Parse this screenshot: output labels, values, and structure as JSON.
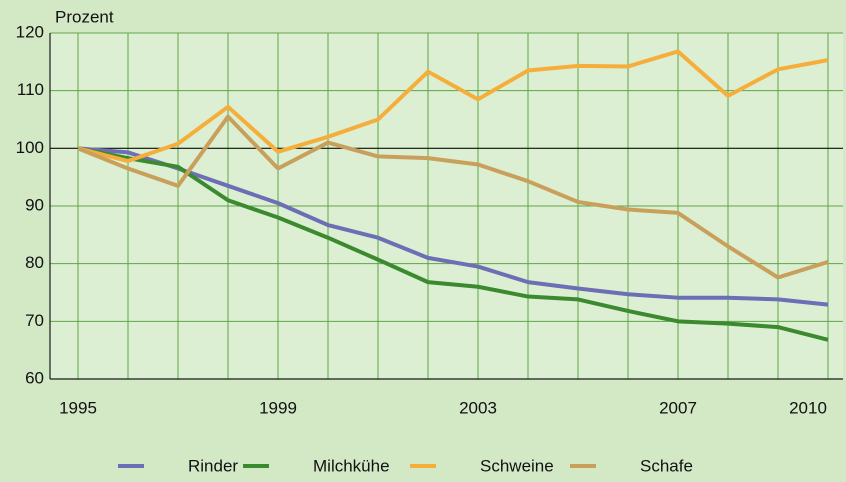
{
  "chart_data": {
    "type": "line",
    "y_label": "Prozent",
    "x": [
      1995,
      1996,
      1997,
      1998,
      1999,
      2000,
      2001,
      2002,
      2003,
      2004,
      2005,
      2006,
      2007,
      2008,
      2009,
      2010
    ],
    "series": [
      {
        "name": "Rinder",
        "color": "#6c6fb5",
        "values": [
          100,
          99.3,
          96.5,
          93.5,
          90.5,
          86.7,
          84.5,
          81,
          79.5,
          76.8,
          75.7,
          74.7,
          74.1,
          74.1,
          73.8,
          72.9
        ]
      },
      {
        "name": "Milchkühe",
        "color": "#3b8a2f",
        "values": [
          100,
          98.3,
          96.8,
          91,
          88,
          84.5,
          80.7,
          76.8,
          76,
          74.3,
          73.8,
          71.8,
          70,
          69.6,
          69,
          66.8
        ]
      },
      {
        "name": "Schweine",
        "color": "#f6ae3b",
        "values": [
          100,
          97.8,
          100.8,
          107.2,
          99.4,
          102,
          105,
          113.3,
          108.5,
          113.5,
          114.3,
          114.2,
          116.8,
          109.1,
          113.7,
          115.3
        ]
      },
      {
        "name": "Schafe",
        "color": "#c9a05b",
        "values": [
          100,
          96.5,
          93.5,
          105.5,
          96.5,
          101,
          98.6,
          98.3,
          97.2,
          94.3,
          90.7,
          89.4,
          88.8,
          83,
          77.6,
          80.3
        ]
      }
    ],
    "xlim": [
      1994.44,
      2010.3
    ],
    "xticks": [
      1995,
      1999,
      2003,
      2007,
      2010
    ],
    "ylim": [
      60,
      120
    ],
    "yticks": [
      60,
      70,
      80,
      90,
      100,
      110,
      120
    ],
    "baseline": 100,
    "grid": true,
    "legend": "bottom"
  }
}
